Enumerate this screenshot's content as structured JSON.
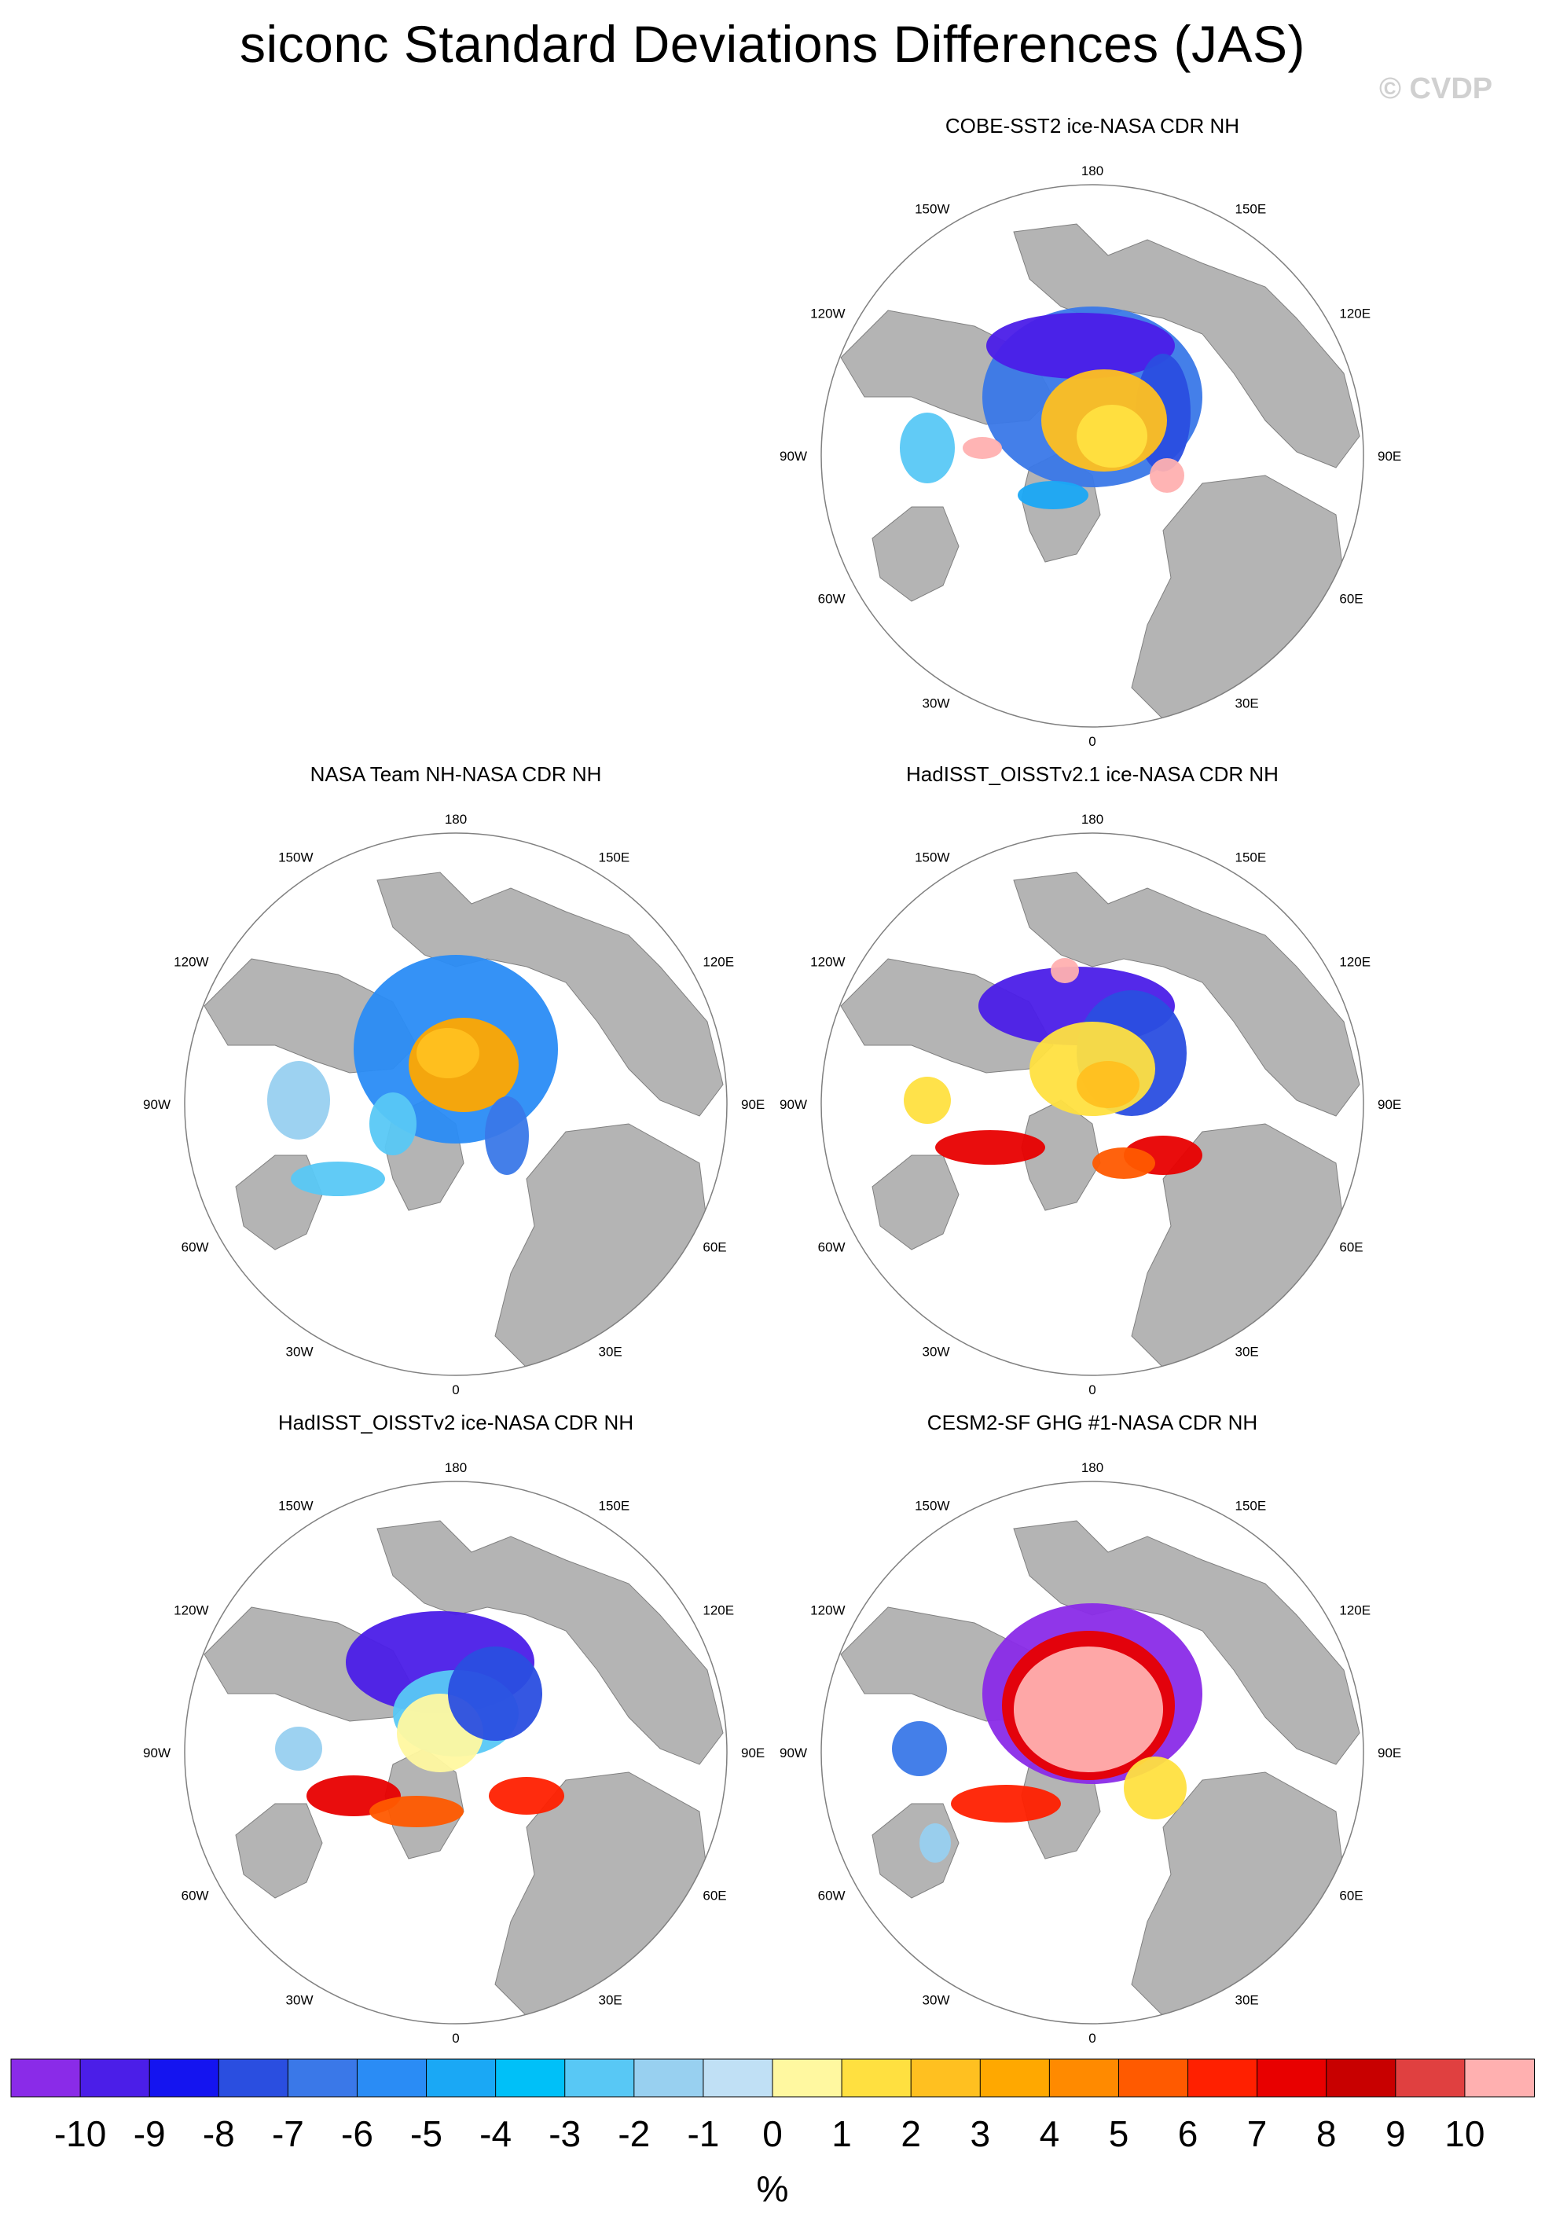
{
  "title": "siconc Standard Deviations Differences (JAS)",
  "watermark": "© CVDP",
  "lon_labels": {
    "top": "180",
    "tr1": "150E",
    "tr2": "120E",
    "right": "90E",
    "br2": "60E",
    "br1": "30E",
    "bottom": "0",
    "bl1": "30W",
    "bl2": "60W",
    "left": "90W",
    "tl2": "120W",
    "tl1": "150W"
  },
  "panels": [
    {
      "title": "COBE-SST2 ice-NASA CDR NH",
      "pattern": "cobe"
    },
    {
      "title": "NASA Team NH-NASA CDR NH",
      "pattern": "team"
    },
    {
      "title": "HadISST_OISSTv2.1 ice-NASA CDR NH",
      "pattern": "had21"
    },
    {
      "title": "HadISST_OISSTv2 ice-NASA CDR NH",
      "pattern": "had2"
    },
    {
      "title": "CESM2-SF GHG #1-NASA CDR NH",
      "pattern": "cesm"
    }
  ],
  "colorbar": {
    "labels": [
      "-10",
      "-9",
      "-8",
      "-7",
      "-6",
      "-5",
      "-4",
      "-3",
      "-2",
      "-1",
      "0",
      "1",
      "2",
      "3",
      "4",
      "5",
      "6",
      "7",
      "8",
      "9",
      "10"
    ],
    "colors": [
      "#8a2be8",
      "#4b1ee8",
      "#1414f0",
      "#2a4ee0",
      "#3a78e8",
      "#2a8cf5",
      "#1aa8f5",
      "#00c0f8",
      "#58c8f5",
      "#98d0f0",
      "#c0e0f5",
      "#fff8a0",
      "#ffe040",
      "#ffc020",
      "#ffa800",
      "#ff8a00",
      "#ff5a00",
      "#ff2000",
      "#e80000",
      "#c80000",
      "#e04040",
      "#ffb0b0"
    ],
    "units": "%"
  }
}
